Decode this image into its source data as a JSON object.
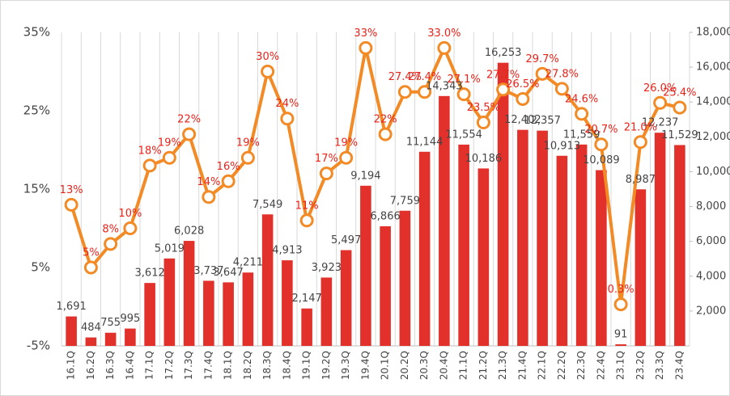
{
  "chart_data": {
    "type": "bar-line",
    "categories": [
      "16.1Q",
      "16.2Q",
      "16.3Q",
      "16.4Q",
      "17.1Q",
      "17.2Q",
      "17.3Q",
      "17.4Q",
      "18.1Q",
      "18.2Q",
      "18.3Q",
      "18.4Q",
      "19.1Q",
      "19.2Q",
      "19.3Q",
      "19.4Q",
      "20.1Q",
      "20.2Q",
      "20.3Q",
      "20.4Q",
      "21.1Q",
      "21.2Q",
      "21.3Q",
      "21.4Q",
      "22.1Q",
      "22.2Q",
      "22.3Q",
      "22.4Q",
      "23.1Q",
      "23.2Q",
      "23.3Q",
      "23.4Q"
    ],
    "series": [
      {
        "type": "bar",
        "axis": "y2",
        "color": "#e2302a",
        "values": [
          1691,
          484,
          755,
          995,
          3612,
          5019,
          6028,
          3737,
          3647,
          4211,
          7549,
          4913,
          2147,
          3923,
          5497,
          9194,
          6866,
          7759,
          11144,
          14343,
          11554,
          10186,
          16253,
          12402,
          12357,
          10913,
          11559,
          10089,
          91,
          8987,
          12237,
          11529
        ],
        "value_labels": [
          "1,691",
          "484",
          "755",
          "995",
          "3,612",
          "5,019",
          "6,028",
          "3,737",
          "3,647",
          "4,211",
          "7,549",
          "4,913",
          "2,147",
          "3,923",
          "5,497",
          "9,194",
          "6,866",
          "7,759",
          "11,144",
          "14,343",
          "11,554",
          "10,186",
          "16,253",
          "12,402",
          "12,357",
          "10,913",
          "11,559",
          "10,089",
          "91",
          "8,987",
          "12,237",
          "11,529"
        ]
      },
      {
        "type": "line",
        "axis": "y",
        "color": "#f28a26",
        "values": [
          13,
          5,
          8,
          10,
          18,
          19,
          22,
          14,
          16,
          19,
          30,
          24,
          11,
          17,
          19,
          33,
          22,
          27.4,
          27.4,
          33.0,
          27.1,
          23.5,
          27.7,
          26.5,
          29.7,
          27.8,
          24.6,
          20.7,
          0.3,
          21.0,
          26.0,
          25.4
        ],
        "value_labels": [
          "13%",
          "5%",
          "8%",
          "10%",
          "18%",
          "19%",
          "22%",
          "14%",
          "16%",
          "19%",
          "30%",
          "24%",
          "11%",
          "17%",
          "19%",
          "33%",
          "22%",
          "27.4%",
          "27.4%",
          "33.0%",
          "27.1%",
          "23.5%",
          "27.7%",
          "26.5%",
          "29.7%",
          "27.8%",
          "24.6%",
          "20.7%",
          "0.3%",
          "21.0%",
          "26.0%",
          "25.4%"
        ]
      }
    ],
    "ylim": [
      -5,
      35
    ],
    "yticks": [
      {
        "value": -5,
        "label": "-5%"
      },
      {
        "value": 5,
        "label": "5%"
      },
      {
        "value": 15,
        "label": "15%"
      },
      {
        "value": 25,
        "label": "25%"
      },
      {
        "value": 35,
        "label": "35%"
      }
    ],
    "y2lim": [
      0,
      18000
    ],
    "y2ticks": [
      {
        "value": 2000,
        "label": "2,000"
      },
      {
        "value": 4000,
        "label": "4,000"
      },
      {
        "value": 6000,
        "label": "6,000"
      },
      {
        "value": 8000,
        "label": "8,000"
      },
      {
        "value": 10000,
        "label": "10,000"
      },
      {
        "value": 12000,
        "label": "12,000"
      },
      {
        "value": 14000,
        "label": "14,000"
      },
      {
        "value": 16000,
        "label": "16,000"
      },
      {
        "value": 18000,
        "label": "18,000"
      }
    ]
  }
}
